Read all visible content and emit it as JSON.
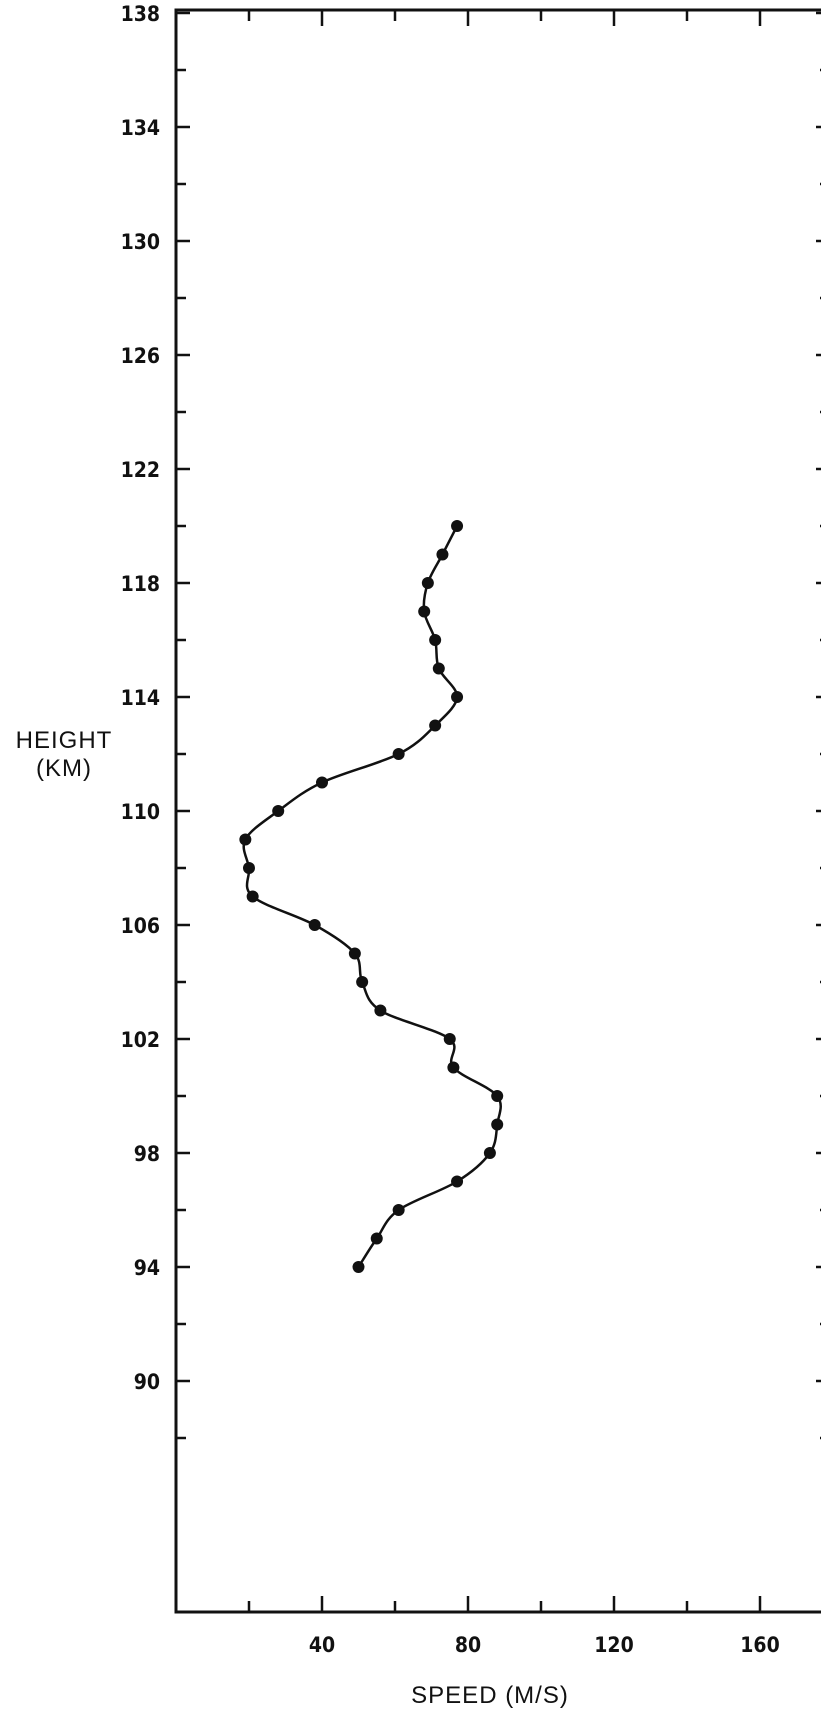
{
  "chart_data": {
    "type": "line",
    "xlabel": "SPEED (M/S)",
    "ylabel_line1": "HEIGHT",
    "ylabel_line2": "(KM)",
    "xlim": [
      0,
      180
    ],
    "ylim": [
      86,
      142
    ],
    "x_ticks": [
      40,
      80,
      120,
      160
    ],
    "y_ticks": [
      90,
      94,
      98,
      102,
      106,
      110,
      114,
      118,
      122,
      126,
      130,
      134,
      138
    ],
    "y_tick_labels": [
      "90",
      "94",
      "98",
      "102",
      "106",
      "110",
      "114",
      "118",
      "122",
      "126",
      "130",
      "134",
      "138"
    ],
    "x_tick_labels": [
      "40",
      "80",
      "120",
      "160"
    ],
    "grid": false,
    "series": [
      {
        "points": [
          {
            "x": 50,
            "y": 94
          },
          {
            "x": 55,
            "y": 95
          },
          {
            "x": 61,
            "y": 96
          },
          {
            "x": 77,
            "y": 97
          },
          {
            "x": 86,
            "y": 98
          },
          {
            "x": 88,
            "y": 99
          },
          {
            "x": 88,
            "y": 100
          },
          {
            "x": 76,
            "y": 101
          },
          {
            "x": 75,
            "y": 102
          },
          {
            "x": 56,
            "y": 103
          },
          {
            "x": 51,
            "y": 104
          },
          {
            "x": 49,
            "y": 105
          },
          {
            "x": 38,
            "y": 106
          },
          {
            "x": 21,
            "y": 107
          },
          {
            "x": 20,
            "y": 108
          },
          {
            "x": 19,
            "y": 109
          },
          {
            "x": 28,
            "y": 110
          },
          {
            "x": 40,
            "y": 111
          },
          {
            "x": 61,
            "y": 112
          },
          {
            "x": 71,
            "y": 113
          },
          {
            "x": 77,
            "y": 114
          },
          {
            "x": 72,
            "y": 115
          },
          {
            "x": 71,
            "y": 116
          },
          {
            "x": 68,
            "y": 117
          },
          {
            "x": 69,
            "y": 118
          },
          {
            "x": 73,
            "y": 119
          },
          {
            "x": 77,
            "y": 120
          }
        ]
      }
    ]
  }
}
